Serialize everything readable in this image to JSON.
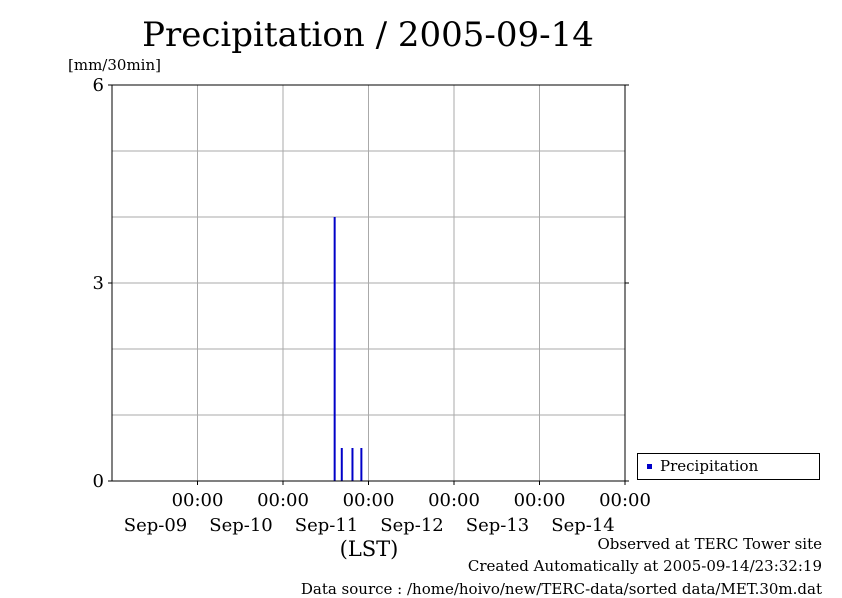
{
  "colors": {
    "series": "#0000c8",
    "grid": "#aaaaaa",
    "axis": "#000000"
  },
  "legend": {
    "label": "Precipitation",
    "placement": "right"
  },
  "footer": {
    "line1": "Observed at TERC Tower site",
    "line2": "Created Automatically at 2005-09-14/23:32:19",
    "line3": "Data source : /home/hoivo/new/TERC-data/sorted  data/MET.30m.dat"
  },
  "chart_data": {
    "type": "bar",
    "title": "Precipitation / 2005-09-14",
    "ylabel": "[mm/30min]",
    "xlabel": "(LST)",
    "ylim": [
      0,
      6
    ],
    "yticks": [
      0,
      3,
      6
    ],
    "ygrid_step": 1,
    "xlim": [
      "2005-09-08T00:00",
      "2005-09-14T00:00"
    ],
    "xticks": [
      {
        "time": "2005-09-09T00:00",
        "label_top": "00:00",
        "label_bottom": "Sep-09"
      },
      {
        "time": "2005-09-10T00:00",
        "label_top": "00:00",
        "label_bottom": "Sep-10"
      },
      {
        "time": "2005-09-11T00:00",
        "label_top": "00:00",
        "label_bottom": "Sep-11"
      },
      {
        "time": "2005-09-12T00:00",
        "label_top": "00:00",
        "label_bottom": "Sep-12"
      },
      {
        "time": "2005-09-13T00:00",
        "label_top": "00:00",
        "label_bottom": "Sep-13"
      },
      {
        "time": "2005-09-14T00:00",
        "label_top": "00:00",
        "label_bottom": "Sep-14"
      }
    ],
    "grid": true,
    "series": [
      {
        "name": "Precipitation",
        "points": [
          {
            "x": "2005-09-10T14:30",
            "y": 4.0
          },
          {
            "x": "2005-09-10T16:30",
            "y": 0.5
          },
          {
            "x": "2005-09-10T19:30",
            "y": 0.5
          },
          {
            "x": "2005-09-10T22:00",
            "y": 0.5
          }
        ]
      }
    ]
  }
}
